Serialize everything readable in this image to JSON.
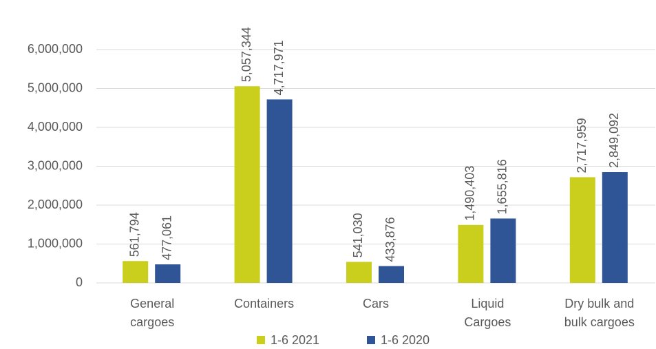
{
  "chart_data": {
    "type": "bar",
    "categories": [
      "General\ncargoes",
      "Containers",
      "Cars",
      "Liquid\nCargoes",
      "Dry bulk and\nbulk cargoes"
    ],
    "series": [
      {
        "name": "1-6 2021",
        "color": "#c9cf1c",
        "values": [
          561794,
          5057344,
          541030,
          1490403,
          2717959
        ],
        "value_labels": [
          "561,794",
          "5,057,344",
          "541,030",
          "1,490,403",
          "2,717,959"
        ]
      },
      {
        "name": "1-6 2020",
        "color": "#2f5597",
        "values": [
          477061,
          4717971,
          433876,
          1655816,
          2849092
        ],
        "value_labels": [
          "477,061",
          "4,717,971",
          "433,876",
          "1,655,816",
          "2,849,092"
        ]
      }
    ],
    "ylim": [
      0,
      6000000
    ],
    "yticks": [
      0,
      {
        "value": 1000000,
        "label": "1,000,000"
      },
      {
        "value": 2000000,
        "label": "2,000,000"
      },
      {
        "value": 3000000,
        "label": "3,000,000"
      },
      {
        "value": 4000000,
        "label": "4,000,000"
      },
      {
        "value": 5000000,
        "label": "5,000,000"
      },
      {
        "value": 6000000,
        "label": "6,000,000"
      }
    ],
    "grid": true,
    "legend": "bottom"
  }
}
